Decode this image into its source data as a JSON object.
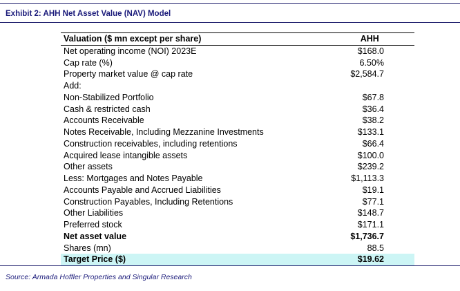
{
  "exhibit": {
    "title": "Exhibit 2:  AHH Net Asset Value (NAV) Model"
  },
  "table": {
    "header": {
      "label": "Valuation ($ mn except per share)",
      "column": "AHH"
    },
    "rows": [
      {
        "label": "Net operating income (NOI) 2023E",
        "value": "$168.0"
      },
      {
        "label": "Cap rate (%)",
        "value": "6.50%"
      },
      {
        "label": "Property market value @ cap rate",
        "value": "$2,584.7"
      },
      {
        "label": "Add:",
        "value": ""
      },
      {
        "label": "Non-Stabilized Portfolio",
        "value": "$67.8"
      },
      {
        "label": "Cash & restricted cash",
        "value": "$36.4"
      },
      {
        "label": "Accounts Receivable",
        "value": "$38.2"
      },
      {
        "label": "Notes Receivable, Including Mezzanine Investments",
        "value": "$133.1"
      },
      {
        "label": "Construction receivables, including retentions",
        "value": "$66.4"
      },
      {
        "label": "Acquired lease intangible assets",
        "value": "$100.0"
      },
      {
        "label": "Other assets",
        "value": "$239.2"
      },
      {
        "label": "Less: Mortgages and Notes Payable",
        "value": "$1,113.3"
      },
      {
        "label": "Accounts Payable and Accrued Liabilities",
        "value": "$19.1"
      },
      {
        "label": "Construction Payables, Including Retentions",
        "value": "$77.1"
      },
      {
        "label": "Other Liabilities",
        "value": "$148.7"
      },
      {
        "label": "Preferred stock",
        "value": "$171.1"
      },
      {
        "label": "Net asset value",
        "value": "$1,736.7"
      },
      {
        "label": "Shares (mn)",
        "value": "88.5"
      },
      {
        "label": "Target Price ($)",
        "value": "$19.62"
      }
    ]
  },
  "source": "Source: Armada Hoffler Properties and Singular Research"
}
